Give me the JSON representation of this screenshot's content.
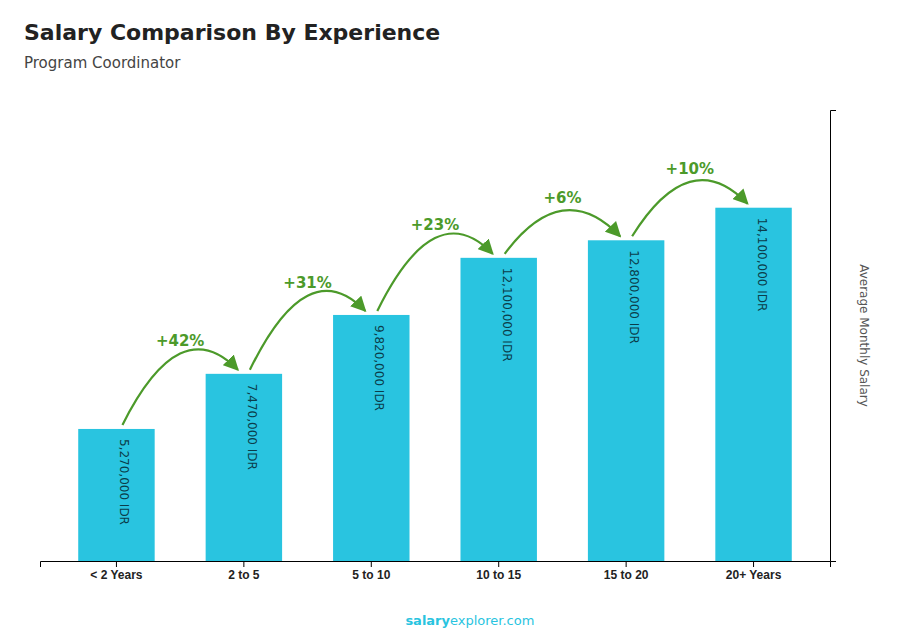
{
  "chart_data": {
    "type": "bar",
    "title": "Salary Comparison By Experience",
    "subtitle": "Program Coordinator",
    "y_label": "Average Monthly Salary",
    "categories": [
      "< 2 Years",
      "2 to 5",
      "5 to 10",
      "10 to 15",
      "15 to 20",
      "20+ Years"
    ],
    "values": [
      5270000,
      7470000,
      9820000,
      12100000,
      12800000,
      14100000
    ],
    "value_labels": [
      "5,270,000 IDR",
      "7,470,000 IDR",
      "9,820,000 IDR",
      "12,100,000 IDR",
      "12,800,000 IDR",
      "14,100,000 IDR"
    ],
    "data_labels": true,
    "change_labels": [
      "+42%",
      "+31%",
      "+23%",
      "+6%",
      "+10%"
    ],
    "watermark": [
      "salary",
      "explorer.com"
    ],
    "color": "#29c4e0",
    "ylim": [
      0,
      18000000
    ],
    "yticks": [],
    "tick_labels": "x",
    "grid": false
  }
}
